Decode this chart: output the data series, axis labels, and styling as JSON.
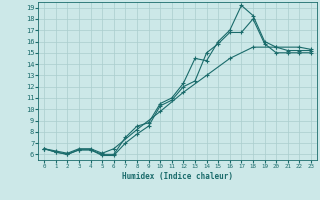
{
  "xlabel": "Humidex (Indice chaleur)",
  "bg_color": "#cce8e8",
  "line_color": "#1a6b6b",
  "grid_color": "#aacece",
  "xlim": [
    -0.5,
    23.5
  ],
  "ylim": [
    5.5,
    19.5
  ],
  "xticks": [
    0,
    1,
    2,
    3,
    4,
    5,
    6,
    7,
    8,
    9,
    10,
    11,
    12,
    13,
    14,
    15,
    16,
    17,
    18,
    19,
    20,
    21,
    22,
    23
  ],
  "yticks": [
    6,
    7,
    8,
    9,
    10,
    11,
    12,
    13,
    14,
    15,
    16,
    17,
    18,
    19
  ],
  "line1_x": [
    0,
    1,
    2,
    3,
    4,
    5,
    6,
    7,
    8,
    9,
    10,
    11,
    12,
    13,
    14,
    15,
    16,
    17,
    18,
    19,
    20,
    21,
    22,
    23
  ],
  "line1_y": [
    6.5,
    6.2,
    6.0,
    6.4,
    6.4,
    6.0,
    6.0,
    7.5,
    8.5,
    8.8,
    10.5,
    11.0,
    12.3,
    14.5,
    14.3,
    16.0,
    17.0,
    19.2,
    18.3,
    16.0,
    15.5,
    15.2,
    15.2,
    15.2
  ],
  "line2_x": [
    0,
    1,
    2,
    3,
    4,
    5,
    6,
    7,
    8,
    9,
    10,
    11,
    12,
    13,
    14,
    15,
    16,
    17,
    18,
    19,
    20,
    21,
    22,
    23
  ],
  "line2_y": [
    6.5,
    6.2,
    6.0,
    6.4,
    6.4,
    5.9,
    5.9,
    7.0,
    7.8,
    8.5,
    10.3,
    10.8,
    12.0,
    12.5,
    15.0,
    15.8,
    16.8,
    16.8,
    18.0,
    15.8,
    15.0,
    15.0,
    15.0,
    15.0
  ],
  "line3_x": [
    0,
    1,
    2,
    3,
    4,
    5,
    6,
    8,
    10,
    12,
    14,
    16,
    18,
    20,
    22,
    23
  ],
  "line3_y": [
    6.5,
    6.3,
    6.1,
    6.5,
    6.5,
    6.1,
    6.5,
    8.2,
    9.8,
    11.5,
    13.0,
    14.5,
    15.5,
    15.5,
    15.5,
    15.3
  ]
}
